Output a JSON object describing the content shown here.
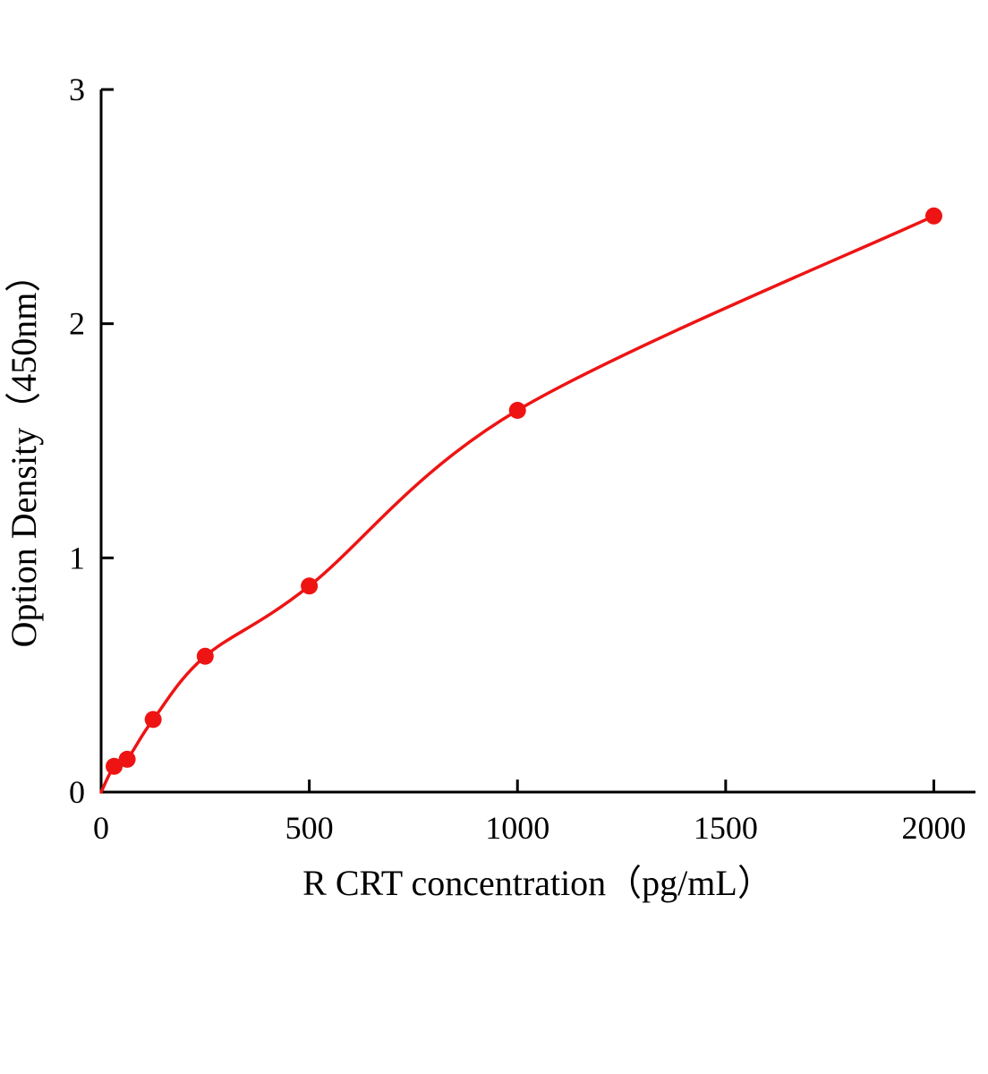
{
  "page": {
    "background": "#ffffff"
  },
  "chart_data": {
    "type": "scatter",
    "title": "",
    "xlabel": "R CRT concentration（pg/mL）",
    "ylabel": "Option Density（450nm）",
    "x": [
      31.25,
      62.5,
      125,
      250,
      500,
      1000,
      2000
    ],
    "y": [
      0.11,
      0.14,
      0.31,
      0.58,
      0.88,
      1.63,
      2.46
    ],
    "curve_origin": {
      "x": 0,
      "y": 0
    },
    "xlim": [
      0,
      2100
    ],
    "ylim": [
      0,
      3
    ],
    "x_ticks": [
      0,
      500,
      1000,
      1500,
      2000
    ],
    "y_ticks": [
      0,
      1,
      2,
      3
    ],
    "grid": false,
    "legend": "none",
    "marker_color": "#ee1414",
    "line_color": "#ee1414",
    "axis_color": "#000000"
  }
}
